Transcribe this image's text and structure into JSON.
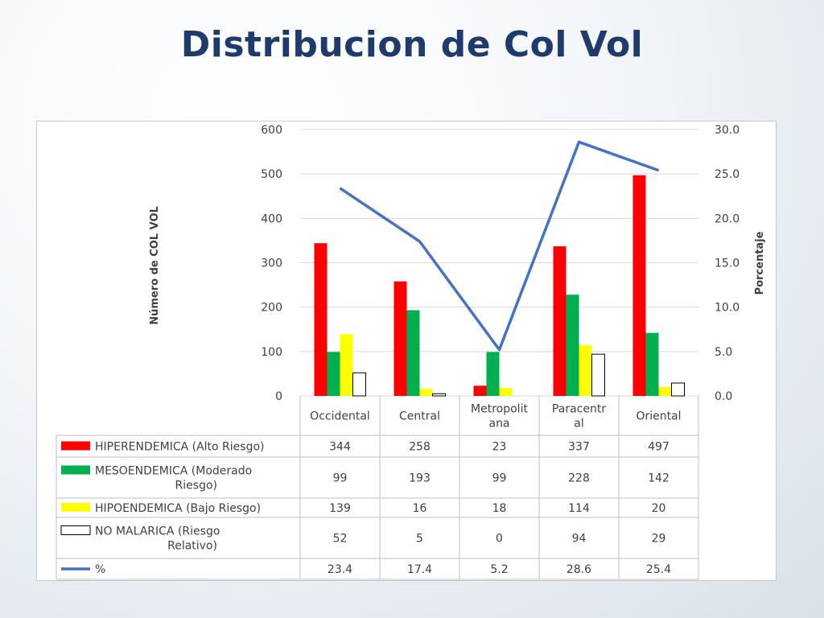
{
  "title": "Distribucion de Col Vol",
  "chart_data": {
    "type": "bar",
    "categories": [
      "Occidental",
      "Central",
      "Metropolitana",
      "Paracentral",
      "Oriental"
    ],
    "category_lines": [
      [
        "Occidental"
      ],
      [
        "Central"
      ],
      [
        "Metropolit",
        "ana"
      ],
      [
        "Paracentr",
        "al"
      ],
      [
        "Oriental"
      ]
    ],
    "series": [
      {
        "name": "HIPERENDEMICA (Alto Riesgo)",
        "name_lines": [
          "HIPERENDEMICA (Alto Riesgo)"
        ],
        "type": "bar",
        "axis": "left",
        "color": "#ff0000",
        "outline": "#ff0000",
        "values": [
          344,
          258,
          23,
          337,
          497
        ],
        "labels": [
          "344",
          "258",
          "23",
          "337",
          "497"
        ]
      },
      {
        "name": "MESOENDEMICA (Moderado Riesgo)",
        "name_lines": [
          "MESOENDEMICA (Moderado",
          "Riesgo)"
        ],
        "type": "bar",
        "axis": "left",
        "color": "#00b050",
        "outline": "#00b050",
        "values": [
          99,
          193,
          99,
          228,
          142
        ],
        "labels": [
          "99",
          "193",
          "99",
          "228",
          "142"
        ]
      },
      {
        "name": "HIPOENDEMICA (Bajo Riesgo)",
        "name_lines": [
          "HIPOENDEMICA (Bajo Riesgo)"
        ],
        "type": "bar",
        "axis": "left",
        "color": "#ffff00",
        "outline": "#ffff00",
        "values": [
          139,
          16,
          18,
          114,
          20
        ],
        "labels": [
          "139",
          "16",
          "18",
          "114",
          "20"
        ]
      },
      {
        "name": "NO MALARICA (Riesgo Relativo)",
        "name_lines": [
          "NO MALARICA (Riesgo",
          "Relativo)"
        ],
        "type": "bar",
        "axis": "left",
        "color": "#ffffff",
        "outline": "#000000",
        "values": [
          52,
          5,
          0,
          94,
          29
        ],
        "labels": [
          "52",
          "5",
          "0",
          "94",
          "29"
        ]
      },
      {
        "name": "%",
        "name_lines": [
          "%"
        ],
        "type": "line",
        "axis": "right",
        "color": "#4472c4",
        "outline": "#4472c4",
        "values": [
          23.4,
          17.4,
          5.2,
          28.6,
          25.4
        ],
        "labels": [
          "23.4",
          "17.4",
          "5.2",
          "28.6",
          "25.4"
        ]
      }
    ],
    "ylabel": "Número de COL VOL",
    "y2label": "Porcentaje",
    "ylim": [
      0,
      600
    ],
    "y2lim": [
      0,
      30
    ],
    "yticks": [
      "0",
      "100",
      "200",
      "300",
      "400",
      "500",
      "600"
    ],
    "y2ticks": [
      "0.0",
      "5.0",
      "10.0",
      "15.0",
      "20.0",
      "25.0",
      "30.0"
    ],
    "grid": true,
    "legend": "data-table"
  }
}
